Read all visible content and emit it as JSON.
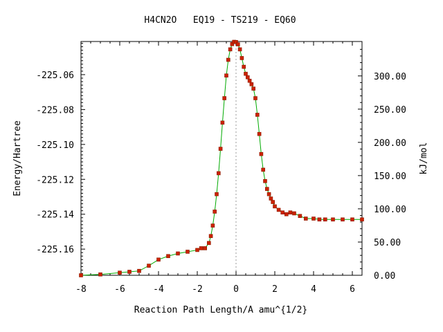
{
  "chart_data": {
    "type": "line",
    "title": "H4CN2O   EQ19 - TS219 - EQ60",
    "xlabel": "Reaction Path Length/A amu^{1/2}",
    "ylabel": "Energy/Hartree",
    "y2label": "kJ/mol",
    "xlim": [
      -8,
      6.5
    ],
    "ylim": [
      -225.175,
      -225.041
    ],
    "y2lim": [
      0,
      351.8
    ],
    "x_ticks": [
      -8,
      -6,
      -4,
      -2,
      0,
      2,
      4,
      6
    ],
    "x_tick_labels": [
      "-8",
      "-6",
      "-4",
      "-2",
      "0",
      "2",
      "4",
      "6"
    ],
    "y_ticks": [
      -225.16,
      -225.14,
      -225.12,
      -225.1,
      -225.08,
      -225.06
    ],
    "y_tick_labels": [
      "-225.16",
      "-225.14",
      "-225.12",
      "-225.10",
      "-225.08",
      "-225.06"
    ],
    "y2_ticks": [
      0,
      50,
      100,
      150,
      200,
      250,
      300
    ],
    "y2_tick_labels": [
      "0.00",
      "50.00",
      "100.00",
      "150.00",
      "200.00",
      "250.00",
      "300.00"
    ],
    "ts_marker_x": 0,
    "grid": false,
    "colors": {
      "line": "#00aa00",
      "marker": "#cc2200",
      "ts_line": "#999999"
    },
    "series": [
      {
        "x": [
          -8.0,
          -7.0,
          -6.0,
          -5.5,
          -5.0,
          -4.5,
          -4.0,
          -3.5,
          -3.0,
          -2.5,
          -2.0,
          -1.8,
          -1.6,
          -1.4,
          -1.3,
          -1.2,
          -1.1,
          -1.0,
          -0.9,
          -0.8,
          -0.7,
          -0.6,
          -0.5,
          -0.4,
          -0.3,
          -0.2,
          -0.1,
          0.0,
          0.1,
          0.2,
          0.3,
          0.4,
          0.5,
          0.6,
          0.7,
          0.8,
          0.9,
          1.0,
          1.1,
          1.2,
          1.3,
          1.4,
          1.5,
          1.6,
          1.7,
          1.8,
          1.9,
          2.0,
          2.2,
          2.4,
          2.6,
          2.8,
          3.0,
          3.3,
          3.6,
          4.0,
          4.3,
          4.6,
          5.0,
          5.5,
          6.0,
          6.5
        ],
        "y": [
          -225.175,
          -225.1745,
          -225.1735,
          -225.173,
          -225.1725,
          -225.1695,
          -225.166,
          -225.164,
          -225.1625,
          -225.1615,
          -225.1605,
          -225.1595,
          -225.1595,
          -225.1565,
          -225.1525,
          -225.1465,
          -225.1385,
          -225.1285,
          -225.1165,
          -225.1025,
          -225.0875,
          -225.0735,
          -225.0605,
          -225.0515,
          -225.0455,
          -225.0425,
          -225.0412,
          -225.0413,
          -225.0426,
          -225.0455,
          -225.0505,
          -225.0555,
          -225.0595,
          -225.0615,
          -225.0635,
          -225.0655,
          -225.068,
          -225.0735,
          -225.083,
          -225.094,
          -225.1055,
          -225.1145,
          -225.121,
          -225.1255,
          -225.1285,
          -225.131,
          -225.133,
          -225.1355,
          -225.1375,
          -225.139,
          -225.14,
          -225.139,
          -225.1395,
          -225.141,
          -225.1425,
          -225.1425,
          -225.143,
          -225.143,
          -225.143,
          -225.143,
          -225.143,
          -225.143
        ]
      }
    ]
  }
}
